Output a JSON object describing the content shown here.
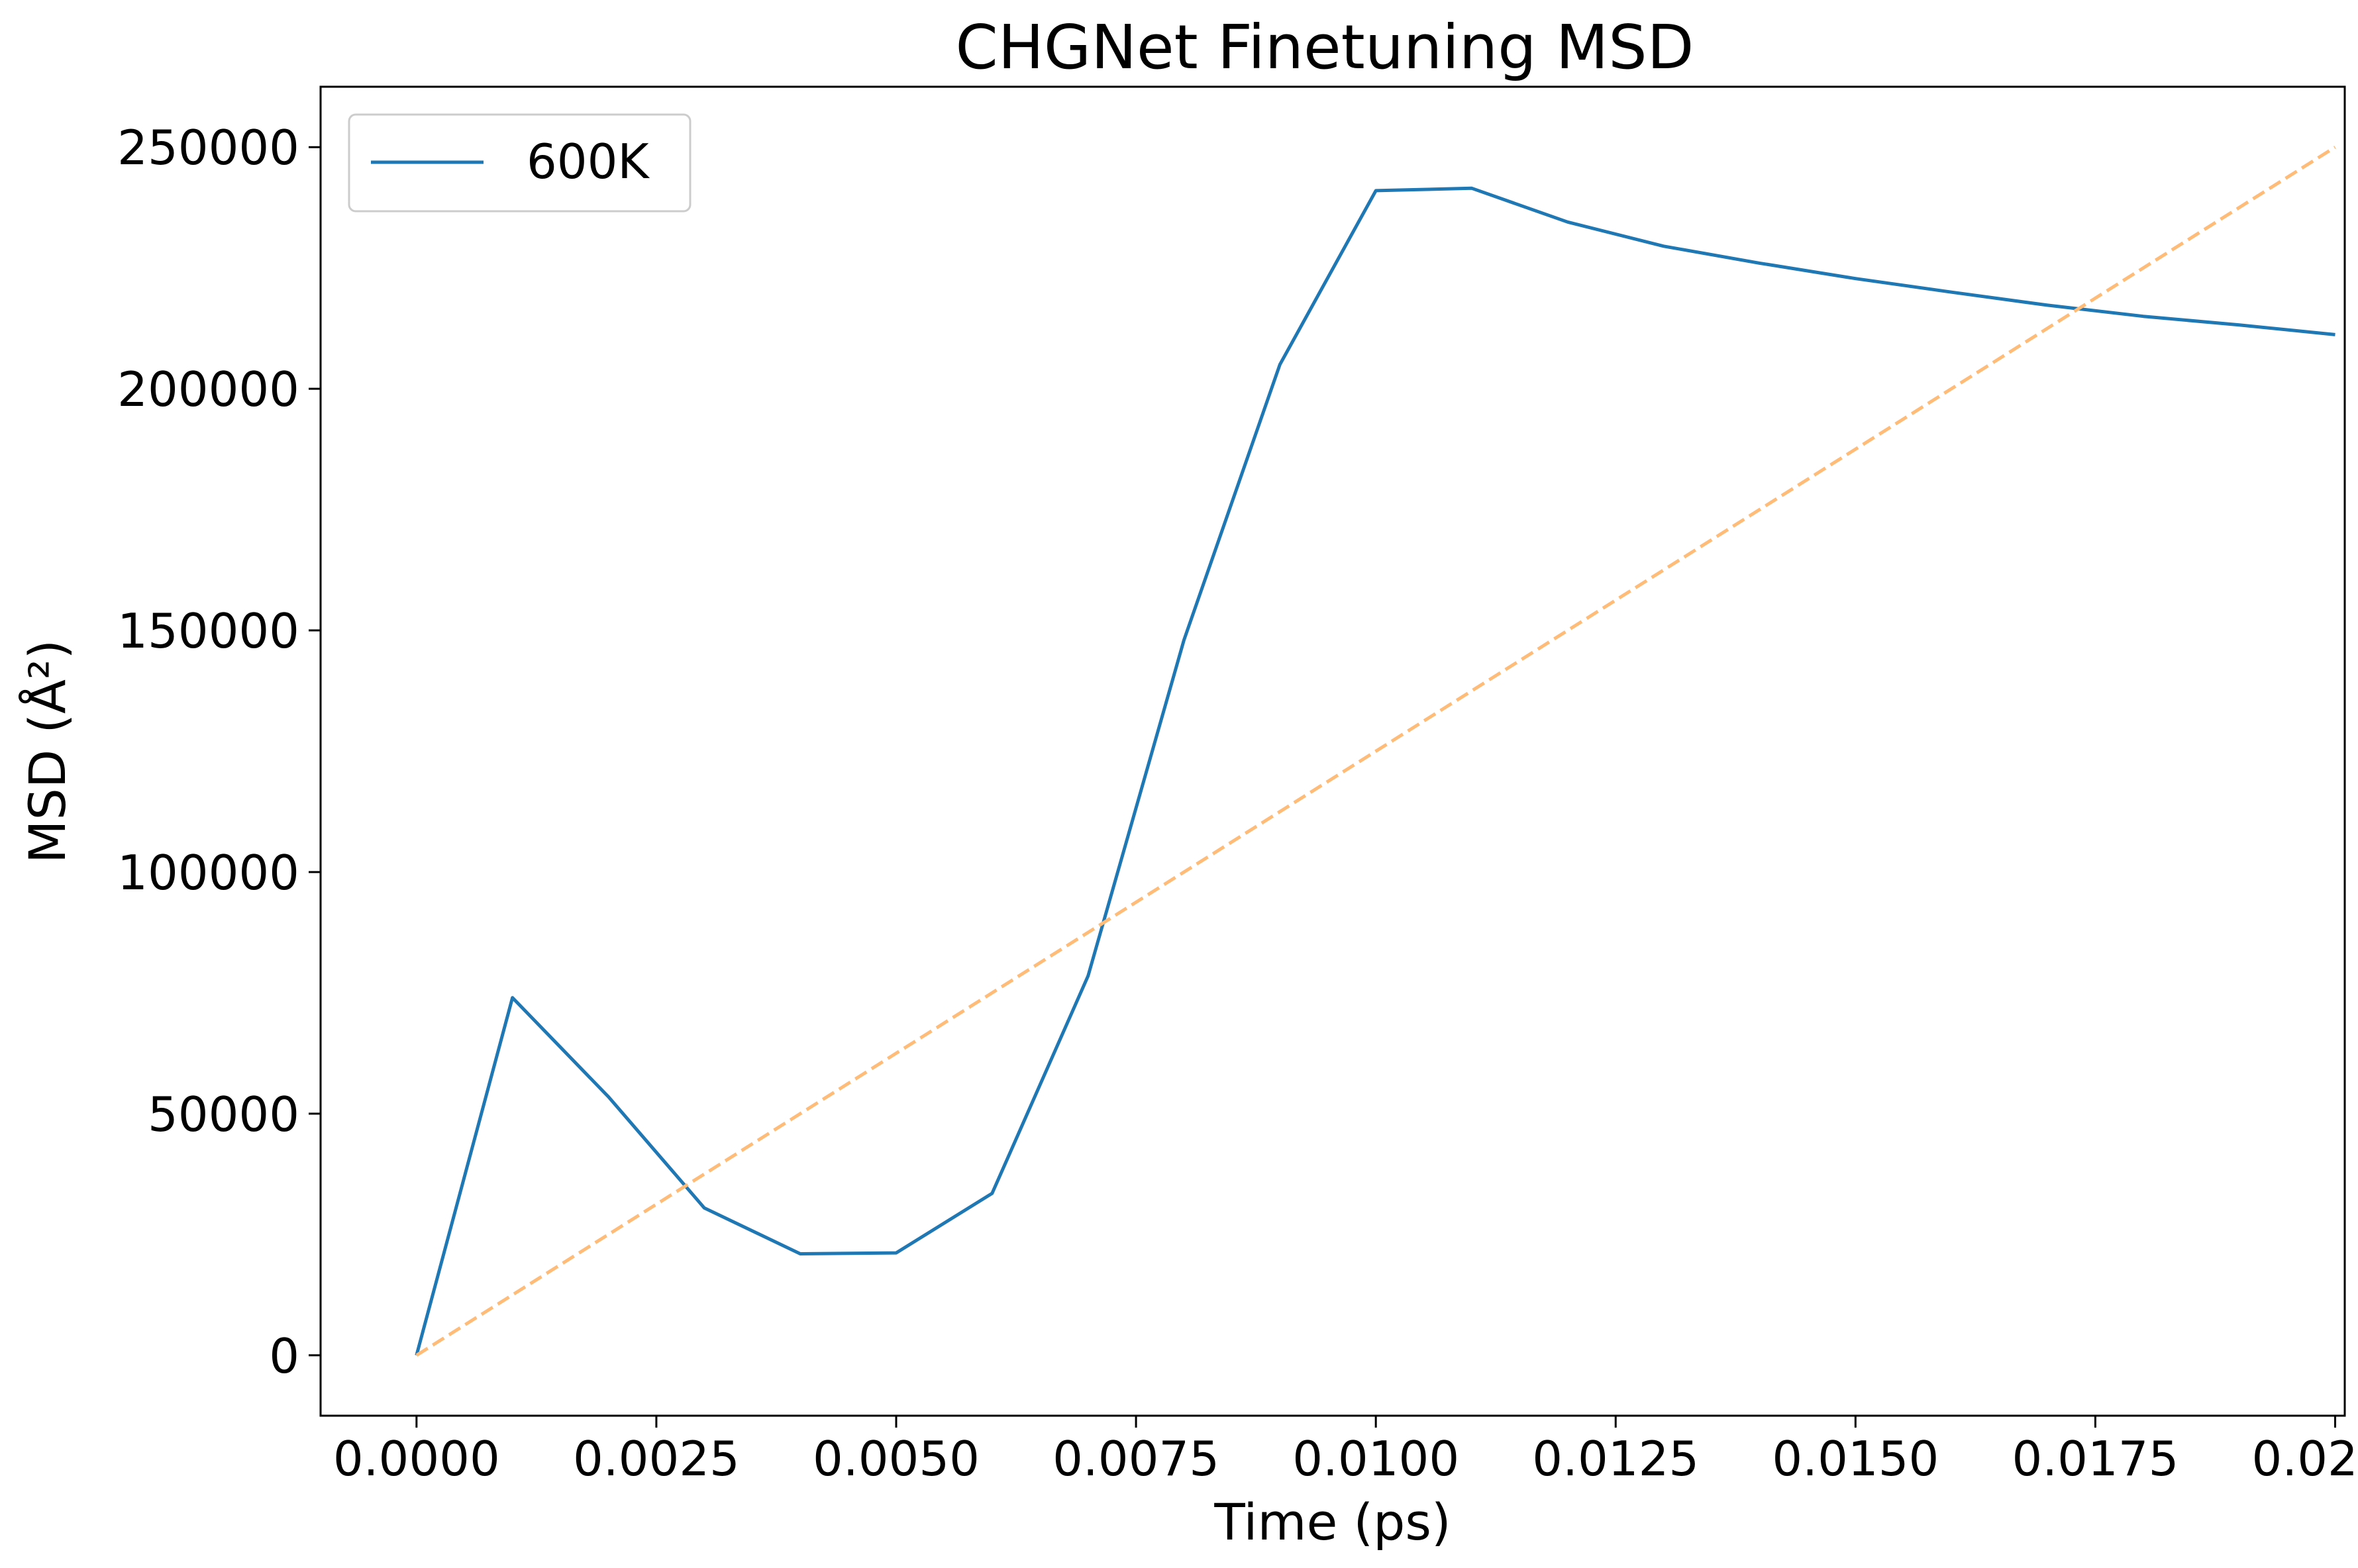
{
  "chart_data": {
    "type": "line",
    "title": "CHGNet Finetuning MSD",
    "xlabel": "Time (ps)",
    "ylabel": "MSD (Å²)",
    "xlim": [
      -0.001,
      0.0201
    ],
    "ylim": [
      -12500,
      262500
    ],
    "x_ticks": [
      0,
      0.0025,
      0.005,
      0.0075,
      0.01,
      0.0125,
      0.015,
      0.0175,
      0.02
    ],
    "x_tick_labels": [
      "0.0000",
      "0.0025",
      "0.0050",
      "0.0075",
      "0.0100",
      "0.0125",
      "0.0150",
      "0.0175",
      "0.0200"
    ],
    "y_ticks": [
      0,
      50000,
      100000,
      150000,
      200000,
      250000
    ],
    "y_tick_labels": [
      "0",
      "50000",
      "100000",
      "150000",
      "200000",
      "250000"
    ],
    "grid": false,
    "legend_position": "top-left",
    "series": [
      {
        "name": "600K",
        "color": "#1f77b4",
        "style": "solid",
        "x": [
          0,
          0.001,
          0.002,
          0.003,
          0.004,
          0.005,
          0.006,
          0.007,
          0.008,
          0.009,
          0.01,
          0.011,
          0.012,
          0.013,
          0.014,
          0.015,
          0.016,
          0.017,
          0.018,
          0.019,
          0.02
        ],
        "y": [
          0,
          74000,
          53500,
          30500,
          21000,
          21200,
          33500,
          78500,
          148000,
          205000,
          241000,
          241500,
          234500,
          229500,
          226000,
          222800,
          220000,
          217300,
          215000,
          213200,
          211200
        ]
      },
      {
        "color": "#ffbb78",
        "style": "dashed",
        "x": [
          0,
          0.02
        ],
        "y": [
          0,
          250000
        ]
      }
    ]
  }
}
